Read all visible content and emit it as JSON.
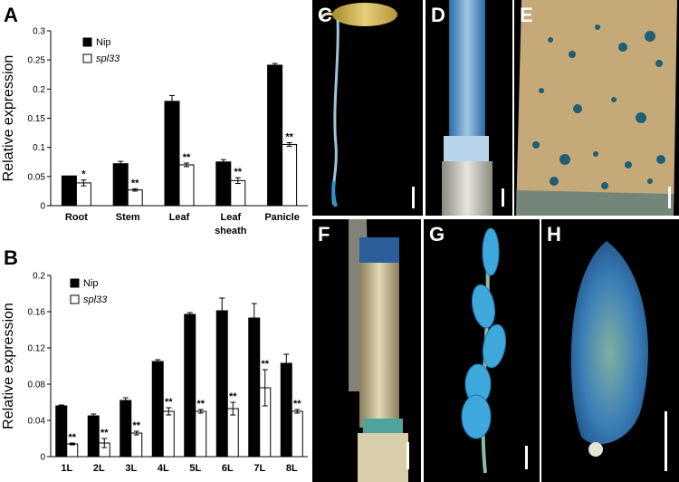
{
  "panels": {
    "a": "A",
    "b": "B",
    "c": "C",
    "d": "D",
    "e": "E",
    "f": "F",
    "g": "G",
    "h": "H"
  },
  "chart_data": [
    {
      "type": "bar",
      "panel": "A",
      "ylabel": "Relative expression",
      "ylim": [
        0,
        0.3
      ],
      "yticks": [
        "0",
        "0.05",
        "0.1",
        "0.15",
        "0.2",
        "0.25",
        "0.3"
      ],
      "categories": [
        "Root",
        "Stem",
        "Leaf",
        "Leaf sheath",
        "Panicle"
      ],
      "category_lines": [
        [
          "Root"
        ],
        [
          "Stem"
        ],
        [
          "Leaf"
        ],
        [
          "Leaf",
          "sheath"
        ],
        [
          "Panicle"
        ]
      ],
      "legend_position": "top-left",
      "series": [
        {
          "name": "Nip",
          "color": "#000000",
          "values": [
            0.051,
            0.072,
            0.179,
            0.075,
            0.241
          ],
          "errors": [
            0.0,
            0.004,
            0.01,
            0.004,
            0.003
          ]
        },
        {
          "name": "spl33",
          "color": "#ffffff",
          "values": [
            0.039,
            0.027,
            0.07,
            0.043,
            0.105
          ],
          "errors": [
            0.005,
            0.002,
            0.003,
            0.005,
            0.003
          ]
        }
      ],
      "annotations": [
        "*",
        "**",
        "**",
        "**",
        "**"
      ]
    },
    {
      "type": "bar",
      "panel": "B",
      "ylabel": "Relative expression",
      "ylim": [
        0,
        0.2
      ],
      "yticks": [
        "0",
        "0.04",
        "0.08",
        "0.12",
        "0.16",
        "0.2"
      ],
      "categories": [
        "1L",
        "2L",
        "3L",
        "4L",
        "5L",
        "6L",
        "7L",
        "8L"
      ],
      "legend_position": "top-left",
      "series": [
        {
          "name": "Nip",
          "color": "#000000",
          "values": [
            0.056,
            0.045,
            0.062,
            0.105,
            0.157,
            0.161,
            0.153,
            0.103
          ],
          "errors": [
            0.001,
            0.002,
            0.003,
            0.002,
            0.002,
            0.014,
            0.016,
            0.01
          ]
        },
        {
          "name": "spl33",
          "color": "#ffffff",
          "values": [
            0.014,
            0.015,
            0.026,
            0.05,
            0.05,
            0.053,
            0.076,
            0.05
          ],
          "errors": [
            0.001,
            0.005,
            0.002,
            0.004,
            0.002,
            0.007,
            0.02,
            0.002
          ]
        }
      ],
      "annotations": [
        "**",
        "**",
        "**",
        "**",
        "**",
        "**",
        "**",
        "**"
      ]
    }
  ]
}
